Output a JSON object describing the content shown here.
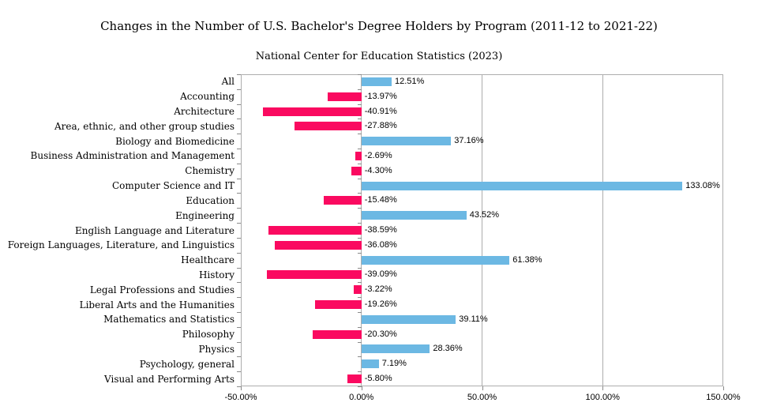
{
  "title": "Changes in the Number of U.S. Bachelor's Degree Holders by Program (2011-12 to 2021-22)",
  "subtitle": "National Center for Education Statistics (2023)",
  "chart_data": {
    "type": "bar",
    "orientation": "horizontal",
    "title": "Changes in the Number of U.S. Bachelor's Degree Holders by Program (2011-12 to 2021-22)",
    "subtitle": "National Center for Education Statistics (2023)",
    "categories": [
      "All",
      "Accounting",
      "Architecture",
      "Area, ethnic, and other group studies",
      "Biology and Biomedicine",
      "Business Administration and Management",
      "Chemistry",
      "Computer Science and IT",
      "Education",
      "Engineering",
      "English Language and Literature",
      "Foreign Languages, Literature, and Linguistics",
      "Healthcare",
      "History",
      "Legal Professions and Studies",
      "Liberal Arts and the Humanities",
      "Mathematics and Statistics",
      "Philosophy",
      "Physics",
      "Psychology, general",
      "Visual and Performing Arts"
    ],
    "values": [
      12.51,
      -13.97,
      -40.91,
      -27.88,
      37.16,
      -2.69,
      -4.3,
      133.08,
      -15.48,
      43.52,
      -38.59,
      -36.08,
      61.38,
      -39.09,
      -3.22,
      -19.26,
      39.11,
      -20.3,
      28.36,
      7.19,
      -5.8
    ],
    "value_labels": [
      "12.51%",
      "-13.97%",
      "-40.91%",
      "-27.88%",
      "37.16%",
      "-2.69%",
      "-4.30%",
      "133.08%",
      "-15.48%",
      "43.52%",
      "-38.59%",
      "-36.08%",
      "61.38%",
      "-39.09%",
      "-3.22%",
      "-19.26%",
      "39.11%",
      "-20.30%",
      "28.36%",
      "7.19%",
      "-5.80%"
    ],
    "xlabel": "",
    "ylabel": "",
    "xlim": [
      -50,
      150
    ],
    "x_ticks": [
      {
        "value": -50,
        "label": "-50.00%"
      },
      {
        "value": 0,
        "label": "0.00%"
      },
      {
        "value": 50,
        "label": "50.00%"
      },
      {
        "value": 100,
        "label": "100.00%"
      },
      {
        "value": 150,
        "label": "150.00%"
      }
    ],
    "grid": "vertical gridlines on",
    "legend": "none",
    "colors": {
      "positive_bar": "#6CB8E3",
      "negative_bar": "#FA0A60",
      "gridline": "#ADADAD",
      "tick": "#8A8A8A",
      "text": "#000000",
      "background": "#FFFFFF"
    }
  }
}
